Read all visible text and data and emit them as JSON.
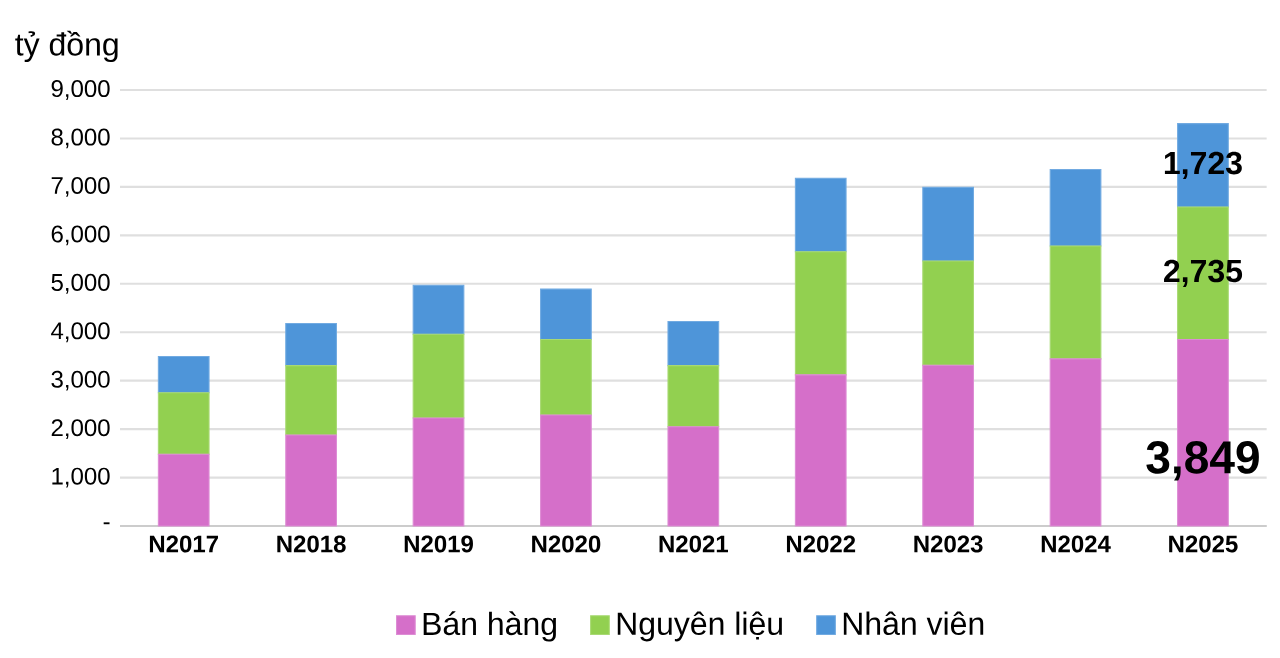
{
  "chart_data": {
    "type": "bar",
    "stacked": true,
    "ylabel": "tỷ đồng",
    "categories": [
      "N2017",
      "N2018",
      "N2019",
      "N2020",
      "N2021",
      "N2022",
      "N2023",
      "N2024",
      "N2025"
    ],
    "series": [
      {
        "name": "Bán hàng",
        "color": "#d56fc9",
        "values": [
          1480,
          1880,
          2230,
          2290,
          2050,
          3120,
          3320,
          3450,
          3849
        ],
        "value_labels": [
          null,
          null,
          null,
          null,
          null,
          null,
          null,
          null,
          "3,849"
        ]
      },
      {
        "name": "Nguyên liệu",
        "color": "#92d050",
        "values": [
          1270,
          1430,
          1730,
          1560,
          1260,
          2540,
          2150,
          2330,
          2735
        ],
        "value_labels": [
          null,
          null,
          null,
          null,
          null,
          null,
          null,
          null,
          "2,735"
        ]
      },
      {
        "name": "Nhân viên",
        "color": "#4e95d9",
        "values": [
          750,
          870,
          1010,
          1040,
          910,
          1520,
          1520,
          1580,
          1723
        ],
        "value_labels": [
          null,
          null,
          null,
          null,
          null,
          null,
          null,
          null,
          "1,723"
        ]
      }
    ],
    "ylim": [
      0,
      9000
    ],
    "yticks": [
      {
        "value": 0,
        "label": "-"
      },
      {
        "value": 1000,
        "label": "1,000"
      },
      {
        "value": 2000,
        "label": "2,000"
      },
      {
        "value": 3000,
        "label": "3,000"
      },
      {
        "value": 4000,
        "label": "4,000"
      },
      {
        "value": 5000,
        "label": "5,000"
      },
      {
        "value": 6000,
        "label": "6,000"
      },
      {
        "value": 7000,
        "label": "7,000"
      },
      {
        "value": 8000,
        "label": "8,000"
      },
      {
        "value": 9000,
        "label": "9,000"
      }
    ],
    "grid": "y",
    "legend": "bottom"
  }
}
